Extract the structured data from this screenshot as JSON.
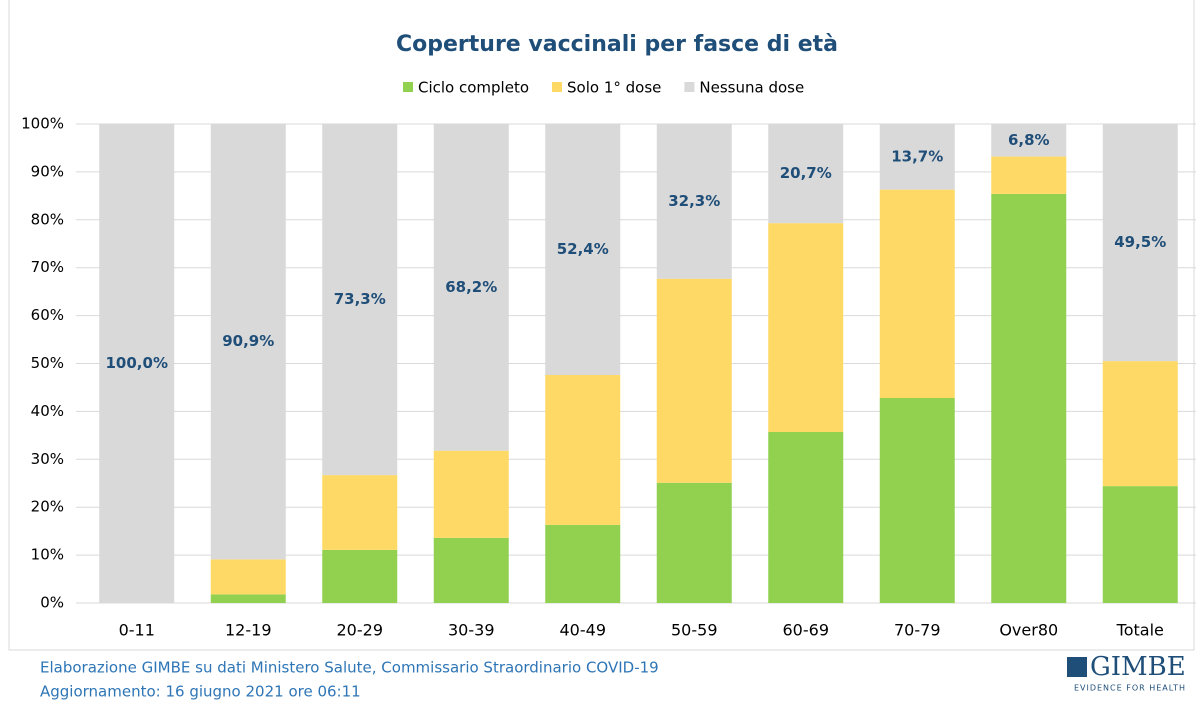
{
  "chart_data": {
    "type": "stacked_bar",
    "title": "Coperture vaccinali per fasce di età",
    "categories": [
      "0-11",
      "12-19",
      "20-29",
      "30-39",
      "40-49",
      "50-59",
      "60-69",
      "70-79",
      "Over80",
      "Totale"
    ],
    "series": [
      {
        "name": "Ciclo completo",
        "color": "#92d050",
        "values": [
          0,
          1.8,
          11.1,
          13.6,
          16.3,
          25.1,
          35.7,
          42.8,
          85.4,
          24.4
        ]
      },
      {
        "name": "Solo 1° dose",
        "color": "#ffd966",
        "values": [
          0,
          7.3,
          15.6,
          18.2,
          31.3,
          42.6,
          43.6,
          43.5,
          7.8,
          26.1
        ]
      },
      {
        "name": "Nessuna dose",
        "color": "#d9d9d9",
        "values": [
          100,
          90.9,
          73.3,
          68.2,
          52.4,
          32.3,
          20.7,
          13.7,
          6.8,
          49.5
        ],
        "value_labels": [
          "100,0%",
          "90,9%",
          "73,3%",
          "68,2%",
          "52,4%",
          "32,3%",
          "20,7%",
          "13,7%",
          "6,8%",
          "49,5%"
        ]
      }
    ],
    "ylim": [
      0,
      100
    ],
    "yticks": [
      {
        "value": 0,
        "label": "0%"
      },
      {
        "value": 10,
        "label": "10%"
      },
      {
        "value": 20,
        "label": "20%"
      },
      {
        "value": 30,
        "label": "30%"
      },
      {
        "value": 40,
        "label": "40%"
      },
      {
        "value": 50,
        "label": "50%"
      },
      {
        "value": 60,
        "label": "60%"
      },
      {
        "value": 70,
        "label": "70%"
      },
      {
        "value": 80,
        "label": "80%"
      },
      {
        "value": 90,
        "label": "90%"
      },
      {
        "value": 100,
        "label": "100%"
      }
    ],
    "grid": true,
    "legend": "top",
    "source": "Elaborazione GIMBE su dati Ministero Salute, Commissario Straordinario COVID-19",
    "updated": "Aggiornamento: 16 giugno 2021 ore 06:11",
    "logo": "GIMBE",
    "logo_tagline": "EVIDENCE FOR HEALTH"
  }
}
